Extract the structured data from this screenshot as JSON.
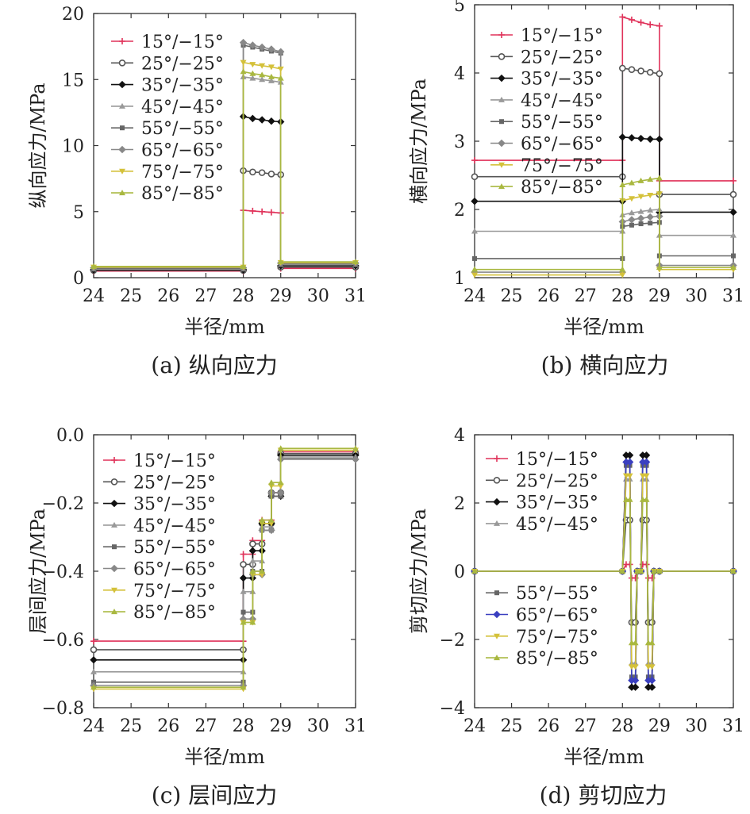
{
  "chart_data": [
    {
      "type": "line",
      "caption": "(a) 纵向应力",
      "xlabel": "半径/mm",
      "ylabel": "纵向应力/MPa",
      "xlim": [
        24,
        31
      ],
      "ylim": [
        0,
        20
      ],
      "xticks": [
        "24",
        "25",
        "26",
        "27",
        "28",
        "29",
        "30",
        "31"
      ],
      "yticks": [
        "0",
        "5",
        "10",
        "15",
        "20"
      ],
      "legend_position": "top-left",
      "series": [
        {
          "name": "15°/−15°",
          "color": "#e0325a",
          "marker": "plus",
          "x": [
            24,
            28,
            28,
            28.25,
            28.5,
            28.75,
            29,
            29,
            31
          ],
          "y": [
            0.5,
            0.5,
            5.1,
            5.05,
            5.0,
            4.95,
            4.9,
            0.7,
            0.7
          ]
        },
        {
          "name": "25°/−25°",
          "color": "#555555",
          "marker": "circle",
          "x": [
            24,
            28,
            28,
            28.25,
            28.5,
            28.75,
            29,
            29,
            31
          ],
          "y": [
            0.55,
            0.55,
            8.1,
            8.0,
            7.95,
            7.85,
            7.8,
            0.8,
            0.8
          ]
        },
        {
          "name": "35°/−35°",
          "color": "#111111",
          "marker": "diamond",
          "x": [
            24,
            28,
            28,
            28.25,
            28.5,
            28.75,
            29,
            29,
            31
          ],
          "y": [
            0.6,
            0.6,
            12.2,
            12.05,
            11.95,
            11.85,
            11.8,
            0.9,
            0.9
          ]
        },
        {
          "name": "45°/−45°",
          "color": "#999999",
          "marker": "triangle",
          "x": [
            24,
            28,
            28,
            28.25,
            28.5,
            28.75,
            29,
            29,
            31
          ],
          "y": [
            0.65,
            0.65,
            15.2,
            15.1,
            15.0,
            14.9,
            14.8,
            1.0,
            1.0
          ]
        },
        {
          "name": "55°/−55°",
          "color": "#666666",
          "marker": "square",
          "x": [
            24,
            28,
            28,
            28.25,
            28.5,
            28.75,
            29,
            29,
            31
          ],
          "y": [
            0.7,
            0.7,
            17.6,
            17.45,
            17.3,
            17.15,
            17.0,
            1.05,
            1.05
          ]
        },
        {
          "name": "65°/−65°",
          "color": "#888888",
          "marker": "diamond",
          "x": [
            24,
            28,
            28,
            28.25,
            28.5,
            28.75,
            29,
            29,
            31
          ],
          "y": [
            0.75,
            0.75,
            17.8,
            17.6,
            17.45,
            17.3,
            17.1,
            1.1,
            1.1
          ]
        },
        {
          "name": "75°/−75°",
          "color": "#d4c13a",
          "marker": "triangle-down",
          "x": [
            24,
            28,
            28,
            28.25,
            28.5,
            28.75,
            29,
            29,
            31
          ],
          "y": [
            0.8,
            0.8,
            16.3,
            16.15,
            16.05,
            15.95,
            15.8,
            1.15,
            1.15
          ]
        },
        {
          "name": "85°/−85°",
          "color": "#a9b840",
          "marker": "triangle",
          "x": [
            24,
            28,
            28,
            28.25,
            28.5,
            28.75,
            29,
            29,
            31
          ],
          "y": [
            0.85,
            0.85,
            15.6,
            15.45,
            15.35,
            15.2,
            15.1,
            1.2,
            1.2
          ]
        }
      ]
    },
    {
      "type": "line",
      "caption": "(b) 横向应力",
      "xlabel": "半径/mm",
      "ylabel": "横向应力/MPa",
      "xlim": [
        24,
        31
      ],
      "ylim": [
        1,
        5
      ],
      "xticks": [
        "24",
        "25",
        "26",
        "27",
        "28",
        "29",
        "30",
        "31"
      ],
      "yticks": [
        "1",
        "2",
        "3",
        "4",
        "5"
      ],
      "legend_position": "top-left",
      "series": [
        {
          "name": "15°/−15°",
          "color": "#e0325a",
          "marker": "plus",
          "x": [
            24,
            28,
            28,
            28.25,
            28.5,
            28.75,
            29,
            29,
            31
          ],
          "y": [
            2.72,
            2.72,
            4.82,
            4.78,
            4.74,
            4.71,
            4.69,
            2.42,
            2.42
          ]
        },
        {
          "name": "25°/−25°",
          "color": "#555555",
          "marker": "circle",
          "x": [
            24,
            28,
            28,
            28.25,
            28.5,
            28.75,
            29,
            29,
            31
          ],
          "y": [
            2.48,
            2.48,
            4.07,
            4.05,
            4.03,
            4.01,
            3.99,
            2.22,
            2.22
          ]
        },
        {
          "name": "35°/−35°",
          "color": "#111111",
          "marker": "diamond",
          "x": [
            24,
            28,
            28,
            28.25,
            28.5,
            28.75,
            29,
            29,
            31
          ],
          "y": [
            2.12,
            2.12,
            3.06,
            3.05,
            3.04,
            3.03,
            3.03,
            1.96,
            1.96
          ]
        },
        {
          "name": "45°/−45°",
          "color": "#999999",
          "marker": "triangle",
          "x": [
            24,
            28,
            28,
            28.25,
            28.5,
            28.75,
            29,
            29,
            31
          ],
          "y": [
            1.68,
            1.68,
            1.92,
            1.95,
            1.97,
            1.99,
            2.0,
            1.62,
            1.62
          ]
        },
        {
          "name": "55°/−55°",
          "color": "#666666",
          "marker": "square",
          "x": [
            24,
            28,
            28,
            28.25,
            28.5,
            28.75,
            29,
            29,
            31
          ],
          "y": [
            1.28,
            1.28,
            1.75,
            1.77,
            1.79,
            1.8,
            1.81,
            1.32,
            1.32
          ]
        },
        {
          "name": "65°/−65°",
          "color": "#888888",
          "marker": "diamond",
          "x": [
            24,
            28,
            28,
            28.25,
            28.5,
            28.75,
            29,
            29,
            31
          ],
          "y": [
            1.08,
            1.08,
            1.82,
            1.85,
            1.87,
            1.89,
            1.9,
            1.18,
            1.18
          ]
        },
        {
          "name": "75°/−75°",
          "color": "#d4c13a",
          "marker": "triangle-down",
          "x": [
            24,
            28,
            28,
            28.25,
            28.5,
            28.75,
            29,
            29,
            31
          ],
          "y": [
            1.04,
            1.04,
            2.13,
            2.16,
            2.19,
            2.21,
            2.23,
            1.12,
            1.12
          ]
        },
        {
          "name": "85°/−85°",
          "color": "#a9b840",
          "marker": "triangle",
          "x": [
            24,
            28,
            28,
            28.25,
            28.5,
            28.75,
            29,
            29,
            31
          ],
          "y": [
            1.12,
            1.12,
            2.36,
            2.39,
            2.42,
            2.44,
            2.46,
            1.15,
            1.15
          ]
        }
      ]
    },
    {
      "type": "line",
      "caption": "(c) 层间应力",
      "xlabel": "半径/mm",
      "ylabel": "层间应力/MPa",
      "xlim": [
        24,
        31
      ],
      "ylim": [
        -0.8,
        0
      ],
      "xticks": [
        "24",
        "25",
        "26",
        "27",
        "28",
        "29",
        "30",
        "31"
      ],
      "yticks": [
        "0.0",
        "−0.2",
        "−0.4",
        "−0.6",
        "−0.8"
      ],
      "legend_position": "left",
      "series": [
        {
          "name": "15°/−15°",
          "color": "#e0325a",
          "marker": "plus",
          "x": [
            24,
            28,
            28,
            28.25,
            28.25,
            28.5,
            28.5,
            28.75,
            28.75,
            29,
            29,
            31
          ],
          "y": [
            -0.605,
            -0.605,
            -0.35,
            -0.35,
            -0.31,
            -0.31,
            -0.25,
            -0.25,
            -0.17,
            -0.17,
            -0.05,
            -0.05
          ]
        },
        {
          "name": "25°/−25°",
          "color": "#555555",
          "marker": "circle",
          "x": [
            24,
            28,
            28,
            28.25,
            28.25,
            28.5,
            28.5,
            28.75,
            28.75,
            29,
            29,
            31
          ],
          "y": [
            -0.63,
            -0.63,
            -0.38,
            -0.38,
            -0.32,
            -0.32,
            -0.26,
            -0.26,
            -0.17,
            -0.17,
            -0.055,
            -0.055
          ]
        },
        {
          "name": "35°/−35°",
          "color": "#111111",
          "marker": "diamond",
          "x": [
            24,
            28,
            28,
            28.25,
            28.25,
            28.5,
            28.5,
            28.75,
            28.75,
            29,
            29,
            31
          ],
          "y": [
            -0.66,
            -0.66,
            -0.42,
            -0.42,
            -0.34,
            -0.34,
            -0.26,
            -0.26,
            -0.18,
            -0.18,
            -0.06,
            -0.06
          ]
        },
        {
          "name": "45°/−45°",
          "color": "#999999",
          "marker": "triangle",
          "x": [
            24,
            28,
            28,
            28.25,
            28.25,
            28.5,
            28.5,
            28.75,
            28.75,
            29,
            29,
            31
          ],
          "y": [
            -0.695,
            -0.695,
            -0.46,
            -0.46,
            -0.37,
            -0.37,
            -0.27,
            -0.27,
            -0.18,
            -0.18,
            -0.065,
            -0.065
          ]
        },
        {
          "name": "55°/−55°",
          "color": "#666666",
          "marker": "square",
          "x": [
            24,
            28,
            28,
            28.25,
            28.25,
            28.5,
            28.5,
            28.75,
            28.75,
            29,
            29,
            31
          ],
          "y": [
            -0.725,
            -0.725,
            -0.52,
            -0.52,
            -0.4,
            -0.4,
            -0.28,
            -0.28,
            -0.18,
            -0.18,
            -0.07,
            -0.07
          ]
        },
        {
          "name": "65°/−65°",
          "color": "#888888",
          "marker": "diamond",
          "x": [
            24,
            28,
            28,
            28.25,
            28.25,
            28.5,
            28.5,
            28.75,
            28.75,
            29,
            29,
            31
          ],
          "y": [
            -0.735,
            -0.735,
            -0.54,
            -0.54,
            -0.41,
            -0.41,
            -0.28,
            -0.28,
            -0.17,
            -0.17,
            -0.072,
            -0.072
          ]
        },
        {
          "name": "75°/−75°",
          "color": "#d4c13a",
          "marker": "triangle-down",
          "x": [
            24,
            28,
            28,
            28.25,
            28.25,
            28.5,
            28.5,
            28.75,
            28.75,
            29,
            29,
            31
          ],
          "y": [
            -0.745,
            -0.745,
            -0.55,
            -0.55,
            -0.41,
            -0.41,
            -0.26,
            -0.26,
            -0.15,
            -0.15,
            -0.045,
            -0.045
          ]
        },
        {
          "name": "85°/−85°",
          "color": "#a9b840",
          "marker": "triangle",
          "x": [
            24,
            28,
            28,
            28.25,
            28.25,
            28.5,
            28.5,
            28.75,
            28.75,
            29,
            29,
            31
          ],
          "y": [
            -0.74,
            -0.74,
            -0.55,
            -0.55,
            -0.4,
            -0.4,
            -0.25,
            -0.25,
            -0.14,
            -0.14,
            -0.04,
            -0.04
          ]
        }
      ]
    },
    {
      "type": "line",
      "caption": "(d) 剪切应力",
      "xlabel": "半径/mm",
      "ylabel": "剪切应力/MPa",
      "xlim": [
        24,
        31
      ],
      "ylim": [
        -4,
        4
      ],
      "xticks": [
        "24",
        "25",
        "26",
        "27",
        "28",
        "29",
        "30",
        "31"
      ],
      "yticks": [
        "4",
        "2",
        "0",
        "−2",
        "−4"
      ],
      "legend_position": "left",
      "series": [
        {
          "name": "15°/−15°",
          "color": "#e0325a",
          "marker": "plus",
          "amp": 0.2
        },
        {
          "name": "25°/−25°",
          "color": "#555555",
          "marker": "circle",
          "amp": 1.5
        },
        {
          "name": "35°/−35°",
          "color": "#111111",
          "marker": "diamond",
          "amp": 3.4
        },
        {
          "name": "45°/−45°",
          "color": "#999999",
          "marker": "triangle",
          "amp": 2.7
        },
        {
          "name": "55°/−55°",
          "color": "#666666",
          "marker": "square",
          "amp": 3.1
        },
        {
          "name": "65°/−65°",
          "color": "#3a3fc0",
          "marker": "diamond",
          "amp": 3.2
        },
        {
          "name": "75°/−75°",
          "color": "#d4c13a",
          "marker": "triangle-down",
          "amp": 2.8
        },
        {
          "name": "85°/−85°",
          "color": "#a9b840",
          "marker": "triangle",
          "amp": 2.1
        }
      ]
    }
  ]
}
